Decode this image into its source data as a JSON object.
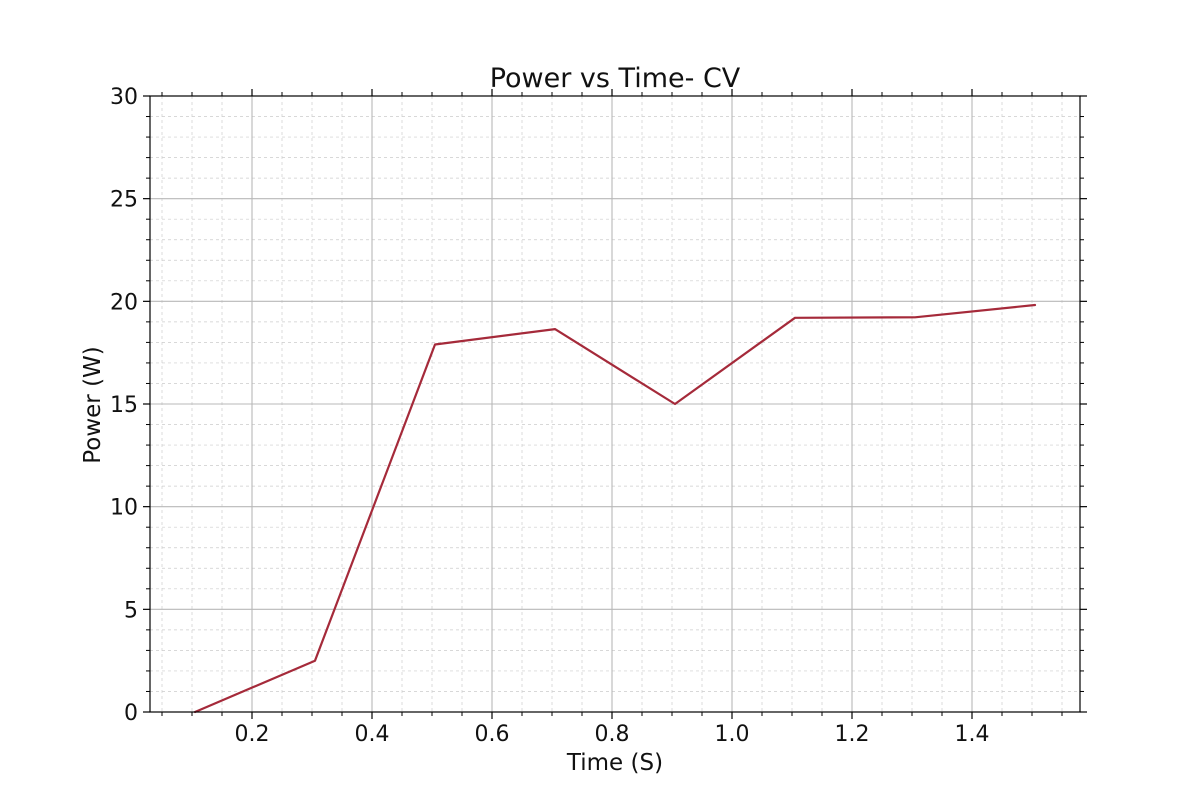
{
  "chart_data": {
    "type": "line",
    "title": "Power vs Time- CV",
    "xlabel": "Time (S)",
    "ylabel": "Power (W)",
    "xlim": [
      0.03,
      1.58
    ],
    "ylim": [
      0,
      30
    ],
    "xticks": [
      0.2,
      0.4,
      0.6,
      0.8,
      1.0,
      1.2,
      1.4
    ],
    "xtick_labels": [
      "0.2",
      "0.4",
      "0.6",
      "0.8",
      "1.0",
      "1.2",
      "1.4"
    ],
    "yticks": [
      0,
      5,
      10,
      15,
      20,
      25,
      30
    ],
    "ytick_labels": [
      "0",
      "5",
      "10",
      "15",
      "20",
      "25",
      "30"
    ],
    "grid": true,
    "minor_grid": true,
    "series": [
      {
        "name": "Power",
        "color": "#a52a3a",
        "x": [
          0.105,
          0.305,
          0.505,
          0.705,
          0.905,
          1.105,
          1.305,
          1.505
        ],
        "values": [
          0.0,
          2.5,
          17.9,
          18.65,
          15.0,
          19.2,
          19.22,
          19.82
        ]
      }
    ]
  }
}
